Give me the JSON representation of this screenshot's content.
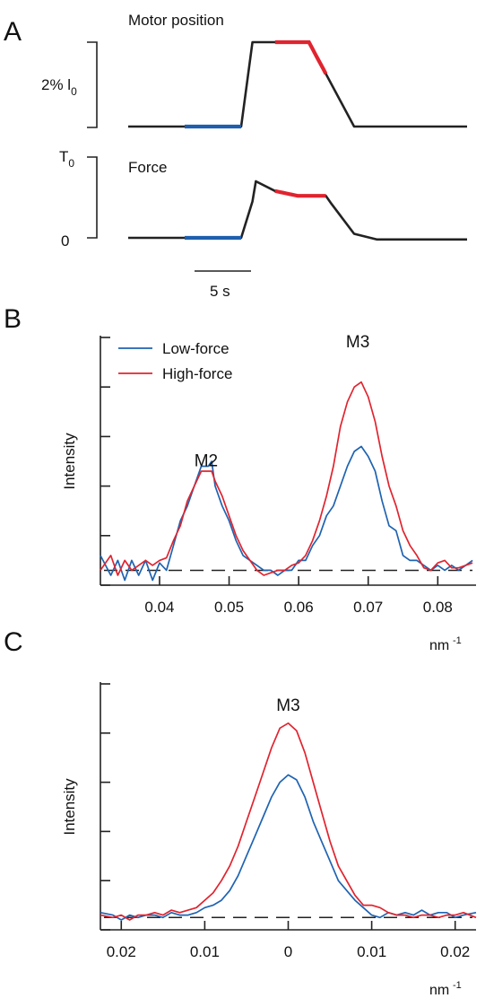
{
  "panels": {
    "a": {
      "label": "A",
      "motor_title": "Motor position",
      "motor_scale_label": "2% l",
      "motor_scale_sub": "0",
      "force_title": "Force",
      "force_top_label": "T",
      "force_top_sub": "0",
      "force_zero_label": "0",
      "time_scale_label": "5 s"
    },
    "b": {
      "label": "B"
    },
    "c": {
      "label": "C"
    }
  },
  "chart_data": [
    {
      "id": "motor",
      "type": "line",
      "title": "Motor position",
      "time_scale_s": 5,
      "series": [
        {
          "color": "#222222",
          "t": [
            0,
            5,
            10,
            11,
            16,
            20,
            30
          ],
          "y": [
            0,
            0,
            0,
            2,
            2,
            0,
            0
          ]
        }
      ],
      "highlights": [
        {
          "color": "#1f5fae",
          "t0": 5,
          "t1": 10
        },
        {
          "color": "#e0242f",
          "t0": 13,
          "t1": 17.5
        }
      ],
      "ylim": [
        0,
        2
      ]
    },
    {
      "id": "force",
      "type": "line",
      "title": "Force",
      "series": [
        {
          "color": "#222222",
          "t": [
            0,
            5,
            10,
            11,
            11.3,
            13,
            15,
            17.5,
            18,
            20,
            22,
            30
          ],
          "y": [
            0,
            0,
            0,
            0.45,
            0.7,
            0.58,
            0.52,
            0.52,
            0.42,
            0.05,
            -0.02,
            -0.02
          ]
        }
      ],
      "highlights": [
        {
          "color": "#1f5fae",
          "t0": 5,
          "t1": 10
        },
        {
          "color": "#e0242f",
          "t0": 13,
          "t1": 17.5
        }
      ],
      "ylim": [
        0,
        1
      ]
    },
    {
      "id": "spectrum-b",
      "type": "line",
      "ylabel": "Intensity",
      "xlabel": "nm",
      "xlabel_sup": "-1",
      "xlim": [
        0.0315,
        0.0855
      ],
      "ylim": [
        0,
        5
      ],
      "x_ticks": [
        "0.04",
        "0.05",
        "0.06",
        "0.07",
        "0.08"
      ],
      "x_tick_values": [
        0.04,
        0.05,
        0.06,
        0.07,
        0.08
      ],
      "baseline": 0.3,
      "legend": "top-left",
      "annotations": [
        {
          "text": "M2",
          "x": 0.0467,
          "y": 2.4
        },
        {
          "text": "M3",
          "x": 0.0685,
          "y": 4.8
        }
      ],
      "series": [
        {
          "name": "Low-force",
          "color": "#1f63b1",
          "x": [
            0.0315,
            0.033,
            0.034,
            0.035,
            0.036,
            0.037,
            0.038,
            0.039,
            0.04,
            0.041,
            0.042,
            0.043,
            0.044,
            0.045,
            0.046,
            0.047,
            0.0475,
            0.048,
            0.049,
            0.05,
            0.051,
            0.052,
            0.053,
            0.054,
            0.055,
            0.056,
            0.057,
            0.058,
            0.059,
            0.06,
            0.061,
            0.062,
            0.063,
            0.064,
            0.065,
            0.066,
            0.067,
            0.068,
            0.069,
            0.07,
            0.071,
            0.072,
            0.073,
            0.074,
            0.075,
            0.076,
            0.077,
            0.078,
            0.079,
            0.08,
            0.081,
            0.082,
            0.083,
            0.084,
            0.085
          ],
          "y": [
            0.6,
            0.2,
            0.5,
            0.1,
            0.5,
            0.2,
            0.5,
            0.1,
            0.45,
            0.3,
            0.8,
            1.3,
            1.6,
            2.0,
            2.4,
            2.4,
            2.5,
            2.0,
            1.6,
            1.3,
            0.9,
            0.6,
            0.5,
            0.4,
            0.3,
            0.3,
            0.2,
            0.3,
            0.3,
            0.5,
            0.5,
            0.8,
            1.0,
            1.4,
            1.6,
            2.0,
            2.4,
            2.7,
            2.8,
            2.6,
            2.3,
            1.7,
            1.2,
            1.1,
            0.6,
            0.5,
            0.5,
            0.4,
            0.3,
            0.4,
            0.3,
            0.4,
            0.3,
            0.4,
            0.5
          ]
        },
        {
          "name": "High-force",
          "color": "#e0242f",
          "x": [
            0.0315,
            0.033,
            0.034,
            0.035,
            0.036,
            0.037,
            0.038,
            0.039,
            0.04,
            0.041,
            0.042,
            0.043,
            0.044,
            0.045,
            0.046,
            0.047,
            0.0475,
            0.048,
            0.049,
            0.05,
            0.051,
            0.052,
            0.053,
            0.054,
            0.055,
            0.056,
            0.057,
            0.058,
            0.059,
            0.06,
            0.061,
            0.062,
            0.063,
            0.064,
            0.065,
            0.066,
            0.067,
            0.068,
            0.069,
            0.07,
            0.071,
            0.072,
            0.073,
            0.074,
            0.075,
            0.076,
            0.077,
            0.078,
            0.079,
            0.08,
            0.081,
            0.082,
            0.083,
            0.084,
            0.085
          ],
          "y": [
            0.3,
            0.6,
            0.2,
            0.5,
            0.3,
            0.4,
            0.5,
            0.4,
            0.5,
            0.55,
            0.9,
            1.2,
            1.7,
            2.0,
            2.3,
            2.3,
            2.3,
            2.1,
            1.8,
            1.4,
            1.0,
            0.7,
            0.5,
            0.3,
            0.2,
            0.25,
            0.3,
            0.3,
            0.4,
            0.45,
            0.6,
            0.9,
            1.3,
            1.8,
            2.4,
            3.2,
            3.7,
            4.0,
            4.1,
            3.8,
            3.3,
            2.6,
            2.0,
            1.6,
            1.1,
            0.8,
            0.6,
            0.35,
            0.3,
            0.45,
            0.5,
            0.35,
            0.35,
            0.4,
            0.45
          ]
        }
      ]
    },
    {
      "id": "spectrum-c",
      "type": "line",
      "ylabel": "Intensity",
      "xlabel": "nm",
      "xlabel_sup": "-1",
      "xlim": [
        -0.0225,
        0.0225
      ],
      "ylim": [
        0,
        5
      ],
      "x_ticks": [
        "0.02",
        "0.01",
        "0",
        "0.01",
        "0.02"
      ],
      "x_tick_values": [
        -0.02,
        -0.01,
        0,
        0.01,
        0.02
      ],
      "baseline": 0.25,
      "annotations": [
        {
          "text": "M3",
          "x": 0,
          "y": 4.45
        }
      ],
      "series": [
        {
          "name": "Low-force",
          "color": "#1f63b1",
          "x": [
            -0.0225,
            -0.021,
            -0.02,
            -0.019,
            -0.018,
            -0.017,
            -0.016,
            -0.015,
            -0.014,
            -0.013,
            -0.012,
            -0.011,
            -0.01,
            -0.009,
            -0.008,
            -0.007,
            -0.006,
            -0.005,
            -0.004,
            -0.003,
            -0.002,
            -0.001,
            0,
            0.001,
            0.002,
            0.003,
            0.004,
            0.005,
            0.006,
            0.007,
            0.008,
            0.009,
            0.01,
            0.011,
            0.012,
            0.013,
            0.014,
            0.015,
            0.016,
            0.017,
            0.018,
            0.019,
            0.02,
            0.021,
            0.0225
          ],
          "y": [
            0.35,
            0.3,
            0.2,
            0.3,
            0.25,
            0.3,
            0.3,
            0.25,
            0.35,
            0.3,
            0.3,
            0.35,
            0.45,
            0.5,
            0.6,
            0.8,
            1.1,
            1.5,
            1.9,
            2.3,
            2.7,
            3.0,
            3.15,
            3.05,
            2.7,
            2.2,
            1.8,
            1.4,
            1.0,
            0.8,
            0.6,
            0.45,
            0.3,
            0.25,
            0.35,
            0.3,
            0.35,
            0.3,
            0.4,
            0.3,
            0.35,
            0.35,
            0.25,
            0.3,
            0.35
          ]
        },
        {
          "name": "High-force",
          "color": "#e0242f",
          "x": [
            -0.0225,
            -0.021,
            -0.02,
            -0.019,
            -0.018,
            -0.017,
            -0.016,
            -0.015,
            -0.014,
            -0.013,
            -0.012,
            -0.011,
            -0.01,
            -0.009,
            -0.008,
            -0.007,
            -0.006,
            -0.005,
            -0.004,
            -0.003,
            -0.002,
            -0.001,
            0,
            0.001,
            0.002,
            0.003,
            0.004,
            0.005,
            0.006,
            0.007,
            0.008,
            0.009,
            0.01,
            0.011,
            0.012,
            0.013,
            0.014,
            0.015,
            0.016,
            0.017,
            0.018,
            0.019,
            0.02,
            0.021,
            0.0225
          ],
          "y": [
            0.3,
            0.25,
            0.3,
            0.2,
            0.3,
            0.3,
            0.35,
            0.3,
            0.4,
            0.35,
            0.4,
            0.45,
            0.6,
            0.75,
            1.0,
            1.3,
            1.7,
            2.2,
            2.7,
            3.2,
            3.7,
            4.1,
            4.2,
            4.05,
            3.6,
            3.0,
            2.4,
            1.8,
            1.3,
            1.0,
            0.7,
            0.5,
            0.5,
            0.45,
            0.35,
            0.3,
            0.3,
            0.25,
            0.3,
            0.3,
            0.25,
            0.3,
            0.3,
            0.35,
            0.25
          ]
        }
      ]
    }
  ]
}
